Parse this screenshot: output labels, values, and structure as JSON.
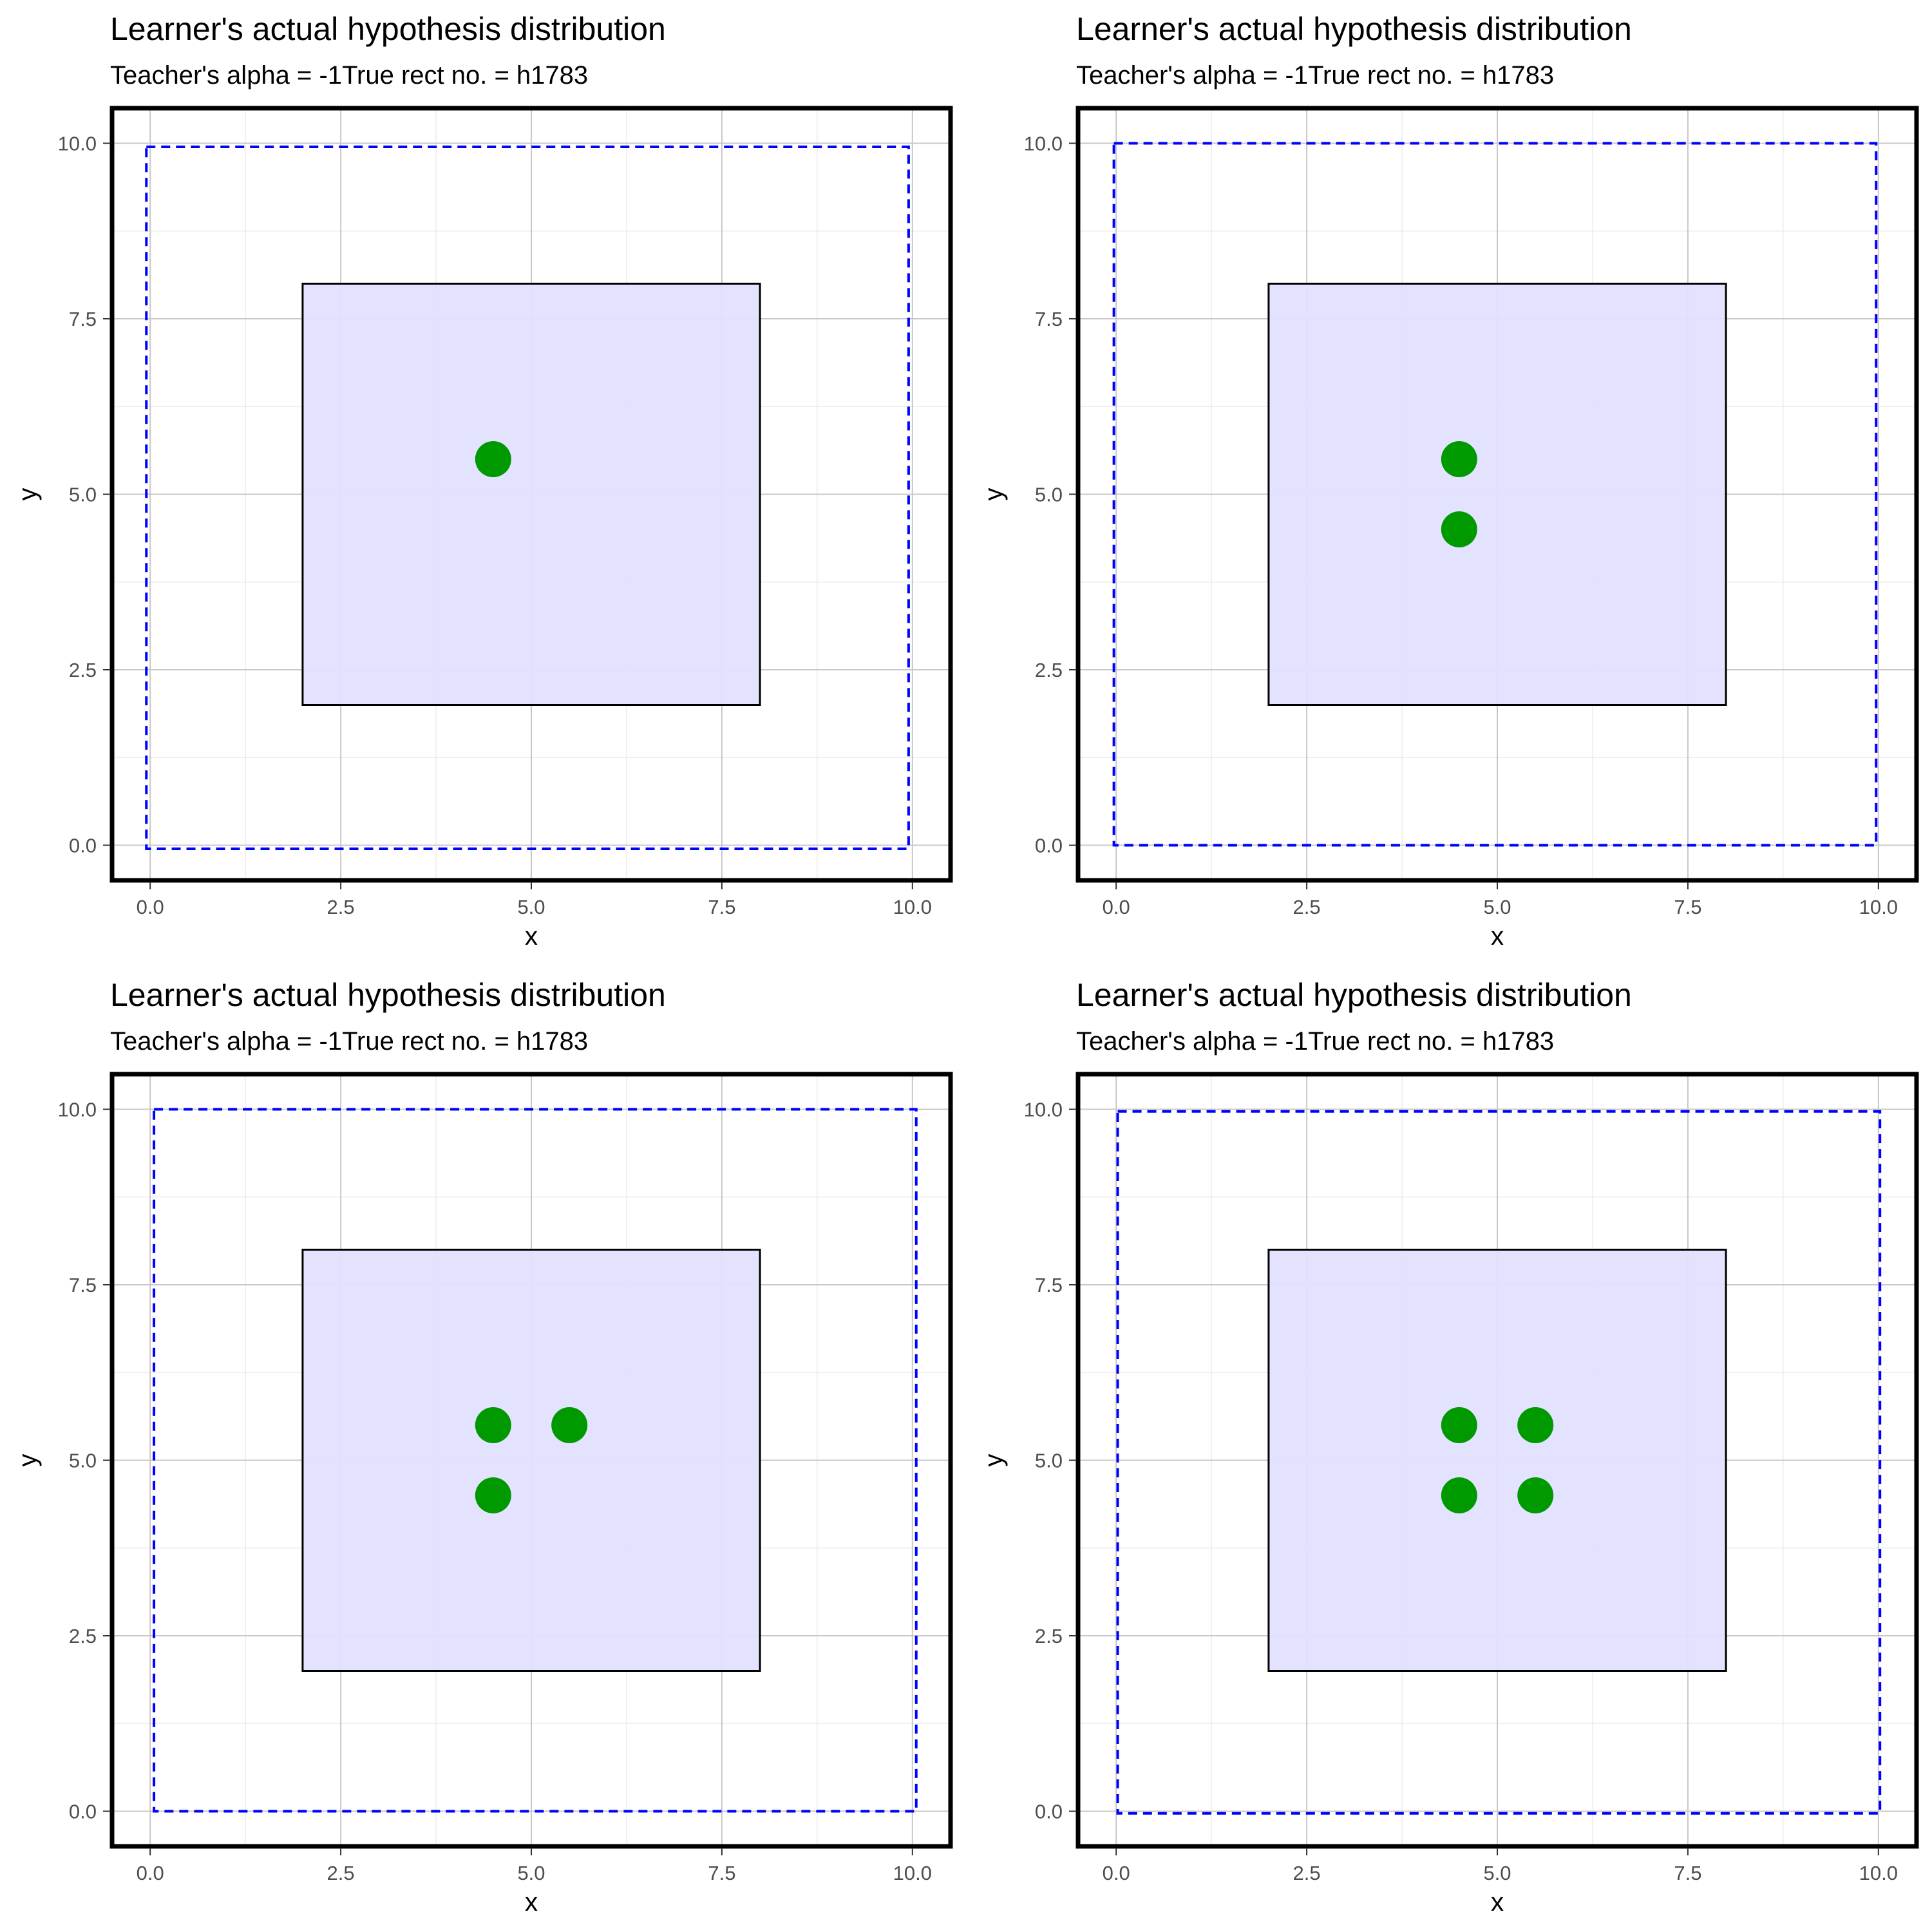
{
  "colors": {
    "true_rect_fill": "#e2e2ff",
    "true_rect_stroke": "#000000",
    "hypothesis_stroke": "#0000ff",
    "point": "#009900",
    "grid_major": "#c8c8c8",
    "grid_minor": "#ececec",
    "panel_border": "#000000"
  },
  "chart_data": [
    {
      "type": "scatter",
      "title": "Learner's actual hypothesis distribution",
      "subtitle": "Teacher's alpha = -1True rect no. = h1783",
      "xlabel": "x",
      "ylabel": "y",
      "xlim": [
        -0.5,
        10.5
      ],
      "ylim": [
        -0.5,
        10.5
      ],
      "x_ticks": [
        "0.0",
        "2.5",
        "5.0",
        "7.5",
        "10.0"
      ],
      "y_ticks": [
        "0.0",
        "2.5",
        "5.0",
        "7.5",
        "10.0"
      ],
      "grid": true,
      "true_rect": {
        "x": [
          2,
          8
        ],
        "y": [
          2,
          8
        ]
      },
      "hypothesis_rect": {
        "x": [
          -0.05,
          9.95
        ],
        "y": [
          -0.05,
          9.95
        ]
      },
      "points": [
        {
          "x": 4.5,
          "y": 5.5
        }
      ]
    },
    {
      "type": "scatter",
      "title": "Learner's actual hypothesis distribution",
      "subtitle": "Teacher's alpha = -1True rect no. = h1783",
      "xlabel": "x",
      "ylabel": "y",
      "xlim": [
        -0.5,
        10.5
      ],
      "ylim": [
        -0.5,
        10.5
      ],
      "x_ticks": [
        "0.0",
        "2.5",
        "5.0",
        "7.5",
        "10.0"
      ],
      "y_ticks": [
        "0.0",
        "2.5",
        "5.0",
        "7.5",
        "10.0"
      ],
      "grid": true,
      "true_rect": {
        "x": [
          2,
          8
        ],
        "y": [
          2,
          8
        ]
      },
      "hypothesis_rect": {
        "x": [
          -0.03,
          9.97
        ],
        "y": [
          0.0,
          10.0
        ]
      },
      "points": [
        {
          "x": 4.5,
          "y": 5.5
        },
        {
          "x": 4.5,
          "y": 4.5
        }
      ]
    },
    {
      "type": "scatter",
      "title": "Learner's actual hypothesis distribution",
      "subtitle": "Teacher's alpha = -1True rect no. = h1783",
      "xlabel": "x",
      "ylabel": "y",
      "xlim": [
        -0.5,
        10.5
      ],
      "ylim": [
        -0.5,
        10.5
      ],
      "x_ticks": [
        "0.0",
        "2.5",
        "5.0",
        "7.5",
        "10.0"
      ],
      "y_ticks": [
        "0.0",
        "2.5",
        "5.0",
        "7.5",
        "10.0"
      ],
      "grid": true,
      "true_rect": {
        "x": [
          2,
          8
        ],
        "y": [
          2,
          8
        ]
      },
      "hypothesis_rect": {
        "x": [
          0.05,
          10.05
        ],
        "y": [
          0.0,
          10.0
        ]
      },
      "points": [
        {
          "x": 4.5,
          "y": 5.5
        },
        {
          "x": 5.5,
          "y": 5.5
        },
        {
          "x": 4.5,
          "y": 4.5
        }
      ]
    },
    {
      "type": "scatter",
      "title": "Learner's actual hypothesis distribution",
      "subtitle": "Teacher's alpha = -1True rect no. = h1783",
      "xlabel": "x",
      "ylabel": "y",
      "xlim": [
        -0.5,
        10.5
      ],
      "ylim": [
        -0.5,
        10.5
      ],
      "x_ticks": [
        "0.0",
        "2.5",
        "5.0",
        "7.5",
        "10.0"
      ],
      "y_ticks": [
        "0.0",
        "2.5",
        "5.0",
        "7.5",
        "10.0"
      ],
      "grid": true,
      "true_rect": {
        "x": [
          2,
          8
        ],
        "y": [
          2,
          8
        ]
      },
      "hypothesis_rect": {
        "x": [
          0.02,
          10.02
        ],
        "y": [
          -0.03,
          9.97
        ]
      },
      "points": [
        {
          "x": 4.5,
          "y": 5.5
        },
        {
          "x": 5.5,
          "y": 5.5
        },
        {
          "x": 4.5,
          "y": 4.5
        },
        {
          "x": 5.5,
          "y": 4.5
        }
      ]
    }
  ]
}
